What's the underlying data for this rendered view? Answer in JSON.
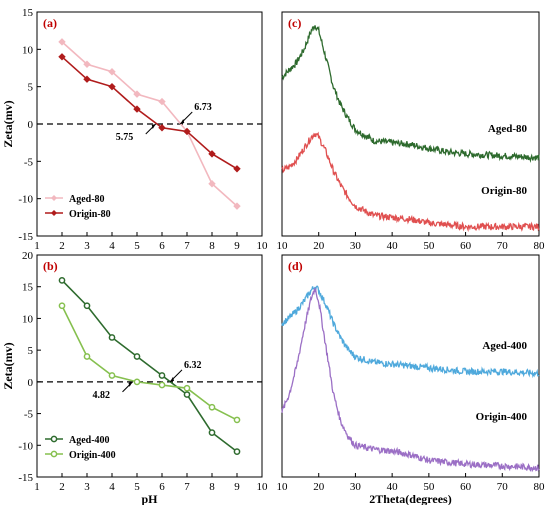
{
  "chart_data": [
    {
      "panel": "(a)",
      "type": "line",
      "ylabel": "Zeta(mv)",
      "xlabel": "",
      "xlim": [
        1,
        10
      ],
      "ylim": [
        -15,
        15
      ],
      "xticks": [
        1,
        2,
        3,
        4,
        5,
        6,
        7,
        8,
        9,
        10
      ],
      "yticks": [
        -15,
        -10,
        -5,
        0,
        5,
        10,
        15
      ],
      "legend_position": "bottom-left",
      "series": [
        {
          "name": "Aged-80",
          "color": "#f2b8bf",
          "marker": "diamond",
          "x": [
            2,
            3,
            4,
            5,
            6,
            7,
            8,
            9
          ],
          "y": [
            11,
            8,
            7,
            4,
            3,
            -1,
            -8,
            -11
          ]
        },
        {
          "name": "Origin-80",
          "color": "#b01c1c",
          "marker": "diamond",
          "x": [
            2,
            3,
            4,
            5,
            6,
            7,
            8,
            9
          ],
          "y": [
            9,
            6,
            5,
            2,
            -0.5,
            -1,
            -4,
            -6
          ]
        }
      ],
      "annotations": [
        {
          "text": "6.73",
          "x": 6.73,
          "y": 0
        },
        {
          "text": "5.75",
          "x": 5.75,
          "y": 0
        }
      ]
    },
    {
      "panel": "(b)",
      "type": "line",
      "ylabel": "Zeta(mv)",
      "xlabel": "pH",
      "xlim": [
        1,
        10
      ],
      "ylim": [
        -15,
        20
      ],
      "xticks": [
        1,
        2,
        3,
        4,
        5,
        6,
        7,
        8,
        9,
        10
      ],
      "yticks": [
        -15,
        -10,
        -5,
        0,
        5,
        10,
        15,
        20
      ],
      "legend_position": "bottom-left",
      "series": [
        {
          "name": "Aged-400",
          "color": "#2e6b2e",
          "marker": "circle",
          "x": [
            2,
            3,
            4,
            5,
            6,
            7,
            8,
            9
          ],
          "y": [
            16,
            12,
            7,
            4,
            1,
            -2,
            -8,
            -11
          ]
        },
        {
          "name": "Origin-400",
          "color": "#86c04f",
          "marker": "circle",
          "x": [
            2,
            3,
            4,
            5,
            6,
            7,
            8,
            9
          ],
          "y": [
            12,
            4,
            1,
            0,
            -0.5,
            -1,
            -4,
            -6
          ]
        }
      ],
      "annotations": [
        {
          "text": "6.32",
          "x": 6.32,
          "y": 0
        },
        {
          "text": "4.82",
          "x": 4.82,
          "y": 0
        }
      ]
    },
    {
      "panel": "(c)",
      "type": "line",
      "xlabel": "",
      "xlim": [
        10,
        80
      ],
      "xticks": [
        10,
        20,
        30,
        40,
        50,
        60,
        70,
        80
      ],
      "yticks_visible": false,
      "series": [
        {
          "name": "Aged-80",
          "color": "#2d6a2d",
          "x": [
            10,
            12,
            14,
            16,
            18,
            19,
            20,
            22,
            24,
            26,
            28,
            30,
            35,
            40,
            45,
            50,
            55,
            60,
            70,
            80
          ],
          "y": [
            0.8,
            0.84,
            0.88,
            0.95,
            1.05,
            1.08,
            1.05,
            0.9,
            0.75,
            0.65,
            0.58,
            0.52,
            0.46,
            0.45,
            0.44,
            0.42,
            0.4,
            0.39,
            0.38,
            0.37
          ]
        },
        {
          "name": "Origin-80",
          "color": "#e05050",
          "x": [
            10,
            12,
            14,
            16,
            18,
            19,
            20,
            22,
            24,
            26,
            28,
            30,
            35,
            40,
            45,
            50,
            55,
            60,
            70,
            80
          ],
          "y": [
            0.3,
            0.32,
            0.36,
            0.42,
            0.48,
            0.5,
            0.48,
            0.4,
            0.3,
            0.22,
            0.16,
            0.11,
            0.06,
            0.05,
            0.04,
            0.02,
            0.01,
            0.0,
            0.0,
            0.0
          ]
        }
      ]
    },
    {
      "panel": "(d)",
      "type": "line",
      "xlabel": "2Theta(degrees)",
      "xlim": [
        10,
        80
      ],
      "xticks": [
        10,
        20,
        30,
        40,
        50,
        60,
        70,
        80
      ],
      "yticks_visible": false,
      "series": [
        {
          "name": "Aged-400",
          "color": "#4fa9dc",
          "x": [
            10,
            12,
            14,
            16,
            18,
            19,
            20,
            22,
            24,
            26,
            28,
            30,
            35,
            40,
            45,
            50,
            55,
            60,
            70,
            80
          ],
          "y": [
            0.78,
            0.81,
            0.85,
            0.9,
            0.96,
            0.98,
            0.96,
            0.88,
            0.78,
            0.7,
            0.64,
            0.6,
            0.57,
            0.56,
            0.55,
            0.54,
            0.53,
            0.52,
            0.52,
            0.51
          ]
        },
        {
          "name": "Origin-400",
          "color": "#9b6fc5",
          "x": [
            10,
            12,
            14,
            16,
            18,
            19,
            20,
            22,
            24,
            26,
            28,
            30,
            35,
            40,
            45,
            50,
            55,
            60,
            70,
            80
          ],
          "y": [
            0.3,
            0.4,
            0.55,
            0.75,
            0.92,
            0.97,
            0.9,
            0.65,
            0.4,
            0.25,
            0.17,
            0.12,
            0.1,
            0.09,
            0.07,
            0.04,
            0.03,
            0.02,
            0.01,
            0.0
          ]
        }
      ]
    }
  ]
}
